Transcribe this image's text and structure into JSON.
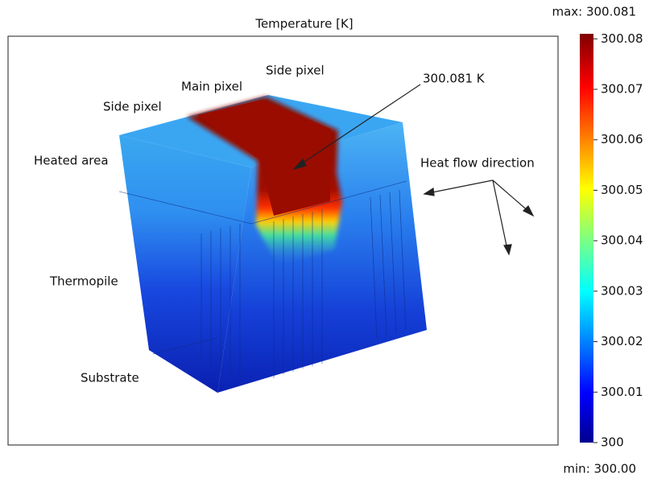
{
  "title": "Temperature [K]",
  "max_label": "max: 300.081",
  "min_label": "min: 300.00",
  "annotations": {
    "side_pixel_right": "Side pixel",
    "main_pixel": "Main pixel",
    "side_pixel_left": "Side pixel",
    "peak": "300.081 K",
    "heated_area": "Heated area",
    "heat_flow": "Heat flow direction",
    "thermopile": "Thermopile",
    "substrate": "Substrate"
  },
  "colorbar": {
    "lim": [
      300,
      300.081
    ],
    "ticks": [
      300,
      300.01,
      300.02,
      300.03,
      300.04,
      300.05,
      300.06,
      300.07,
      300.08
    ]
  }
}
